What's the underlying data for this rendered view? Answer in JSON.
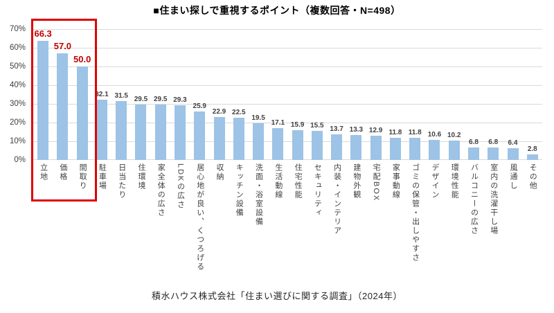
{
  "title": "■住まい探しで重視するポイント（複数回答・N=498）",
  "footer": "積水ハウス株式会社「住まい選びに関する調査」（2024年）",
  "colors": {
    "bar": "#9DC3E6",
    "grid": "#D9D9D9",
    "axis_text": "#404040",
    "value_text": "#404040",
    "highlight_text": "#C00000",
    "highlight_box": "#DE0000"
  },
  "chart_data": {
    "type": "bar",
    "title": "■住まい探しで重視するポイント（複数回答・N=498）",
    "categories": [
      "立地",
      "価格",
      "間取り",
      "駐車場",
      "日当たり",
      "住環境",
      "家全体の広さ",
      "LDKの広さ",
      "居心地が良い、くつろげる",
      "収納",
      "キッチン設備",
      "洗面・浴室設備",
      "生活動線",
      "住宅性能",
      "セキュリティ",
      "内装・インテリア",
      "建物外観",
      "宅配BOX",
      "家事動線",
      "ゴミの保管・出しやすさ",
      "デザイン",
      "環境性能",
      "バルコニーの広さ",
      "室内の洗濯干し場",
      "風通し",
      "その他"
    ],
    "values": [
      66.3,
      57.0,
      50.0,
      32.1,
      31.5,
      29.5,
      29.5,
      29.3,
      25.9,
      22.9,
      22.5,
      19.5,
      17.1,
      15.9,
      15.5,
      13.7,
      13.3,
      12.9,
      11.8,
      11.8,
      10.6,
      10.2,
      6.8,
      6.8,
      6.4,
      2.8
    ],
    "value_label_format": "one-decimal",
    "xlabel": "",
    "ylabel": "",
    "ylim": [
      0,
      70
    ],
    "yticks": [
      0,
      10,
      20,
      30,
      40,
      50,
      60,
      70
    ],
    "ytick_labels": [
      "0%",
      "10%",
      "20%",
      "30%",
      "40%",
      "50%",
      "60%",
      "70%"
    ],
    "grid": true,
    "legend": false,
    "highlight_count": 3,
    "highlighted_categories": [
      "立地",
      "価格",
      "間取り"
    ]
  }
}
